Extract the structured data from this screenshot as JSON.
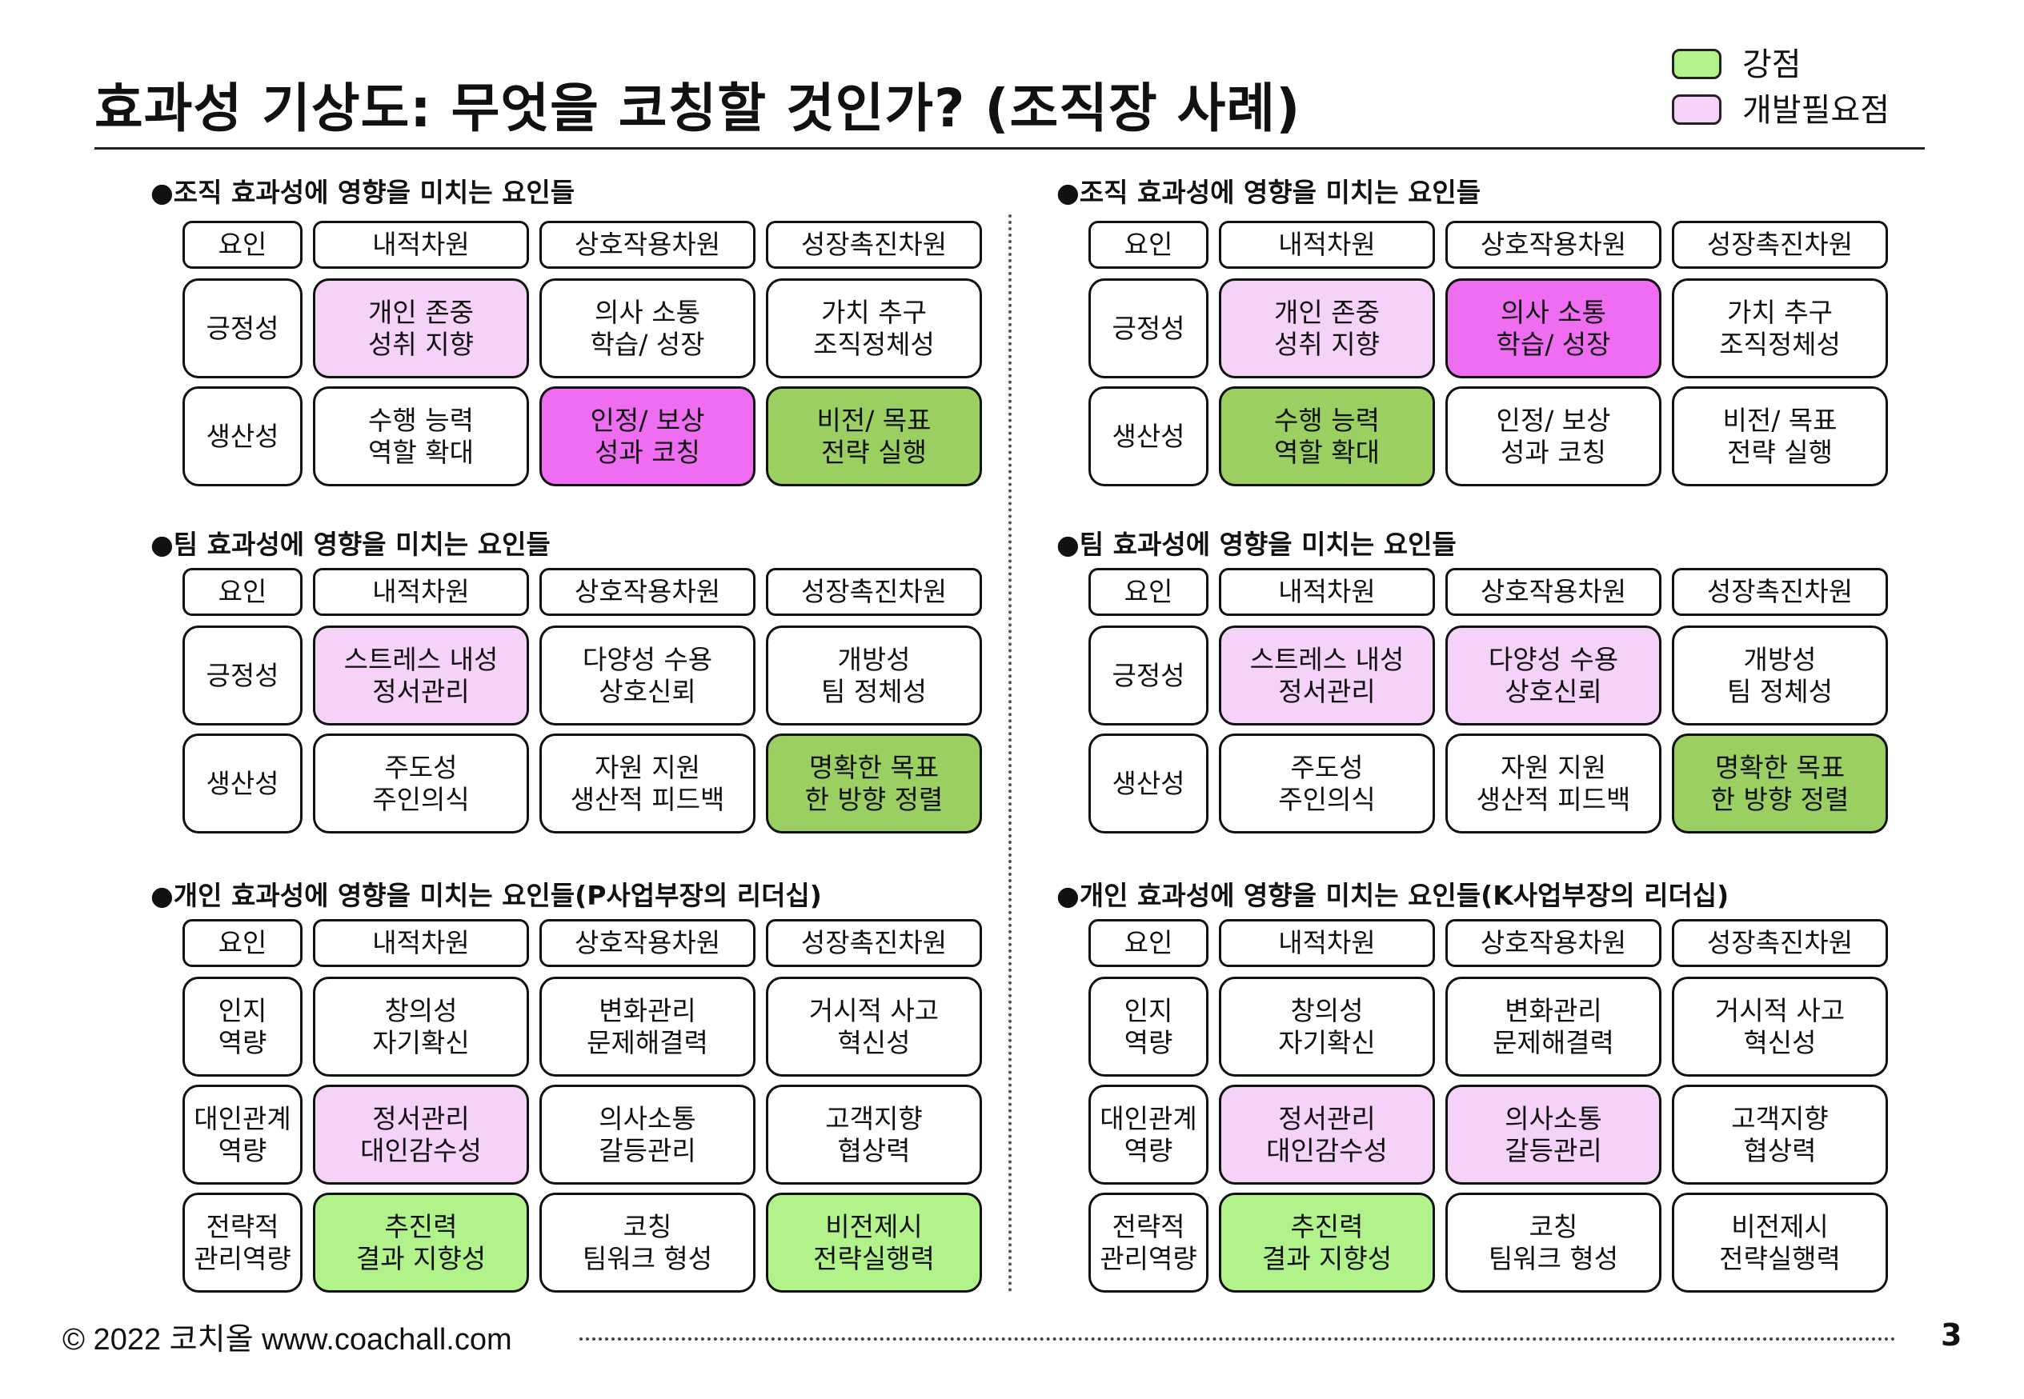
{
  "title": "효과성 기상도: 무엇을 코칭할 것인가? (조직장 사례)",
  "legend": [
    {
      "label": "강점",
      "color": "#b2f28a"
    },
    {
      "label": "개발필요점",
      "color": "#f5d2f8"
    }
  ],
  "colors": {
    "strength": "#b2f28a",
    "strength_dark": "#9ccf62",
    "develop": "#f5d2f8",
    "develop_strong": "#ee6df0",
    "none": "#ffffff"
  },
  "left_sections": [
    {
      "title": "●조직 효과성에 영향을 미치는 요인들",
      "header": [
        "요인",
        "내적차원",
        "상호작용차원",
        "성장촉진차원"
      ],
      "rows": [
        {
          "label": "긍정성",
          "cells": [
            {
              "text": "개인 존중\n성취 지향",
              "hl": "develop"
            },
            {
              "text": "의사 소통\n학습/ 성장",
              "hl": "none"
            },
            {
              "text": "가치 추구\n조직정체성",
              "hl": "none"
            }
          ]
        },
        {
          "label": "생산성",
          "cells": [
            {
              "text": "수행 능력\n역할 확대",
              "hl": "none"
            },
            {
              "text": "인정/ 보상\n성과 코칭",
              "hl": "develop_strong"
            },
            {
              "text": "비전/ 목표\n전략 실행",
              "hl": "strength_dark"
            }
          ]
        }
      ]
    },
    {
      "title": "●팀 효과성에 영향을 미치는 요인들",
      "header": [
        "요인",
        "내적차원",
        "상호작용차원",
        "성장촉진차원"
      ],
      "rows": [
        {
          "label": "긍정성",
          "cells": [
            {
              "text": "스트레스 내성\n정서관리",
              "hl": "develop"
            },
            {
              "text": "다양성 수용\n상호신뢰",
              "hl": "none"
            },
            {
              "text": "개방성\n팀 정체성",
              "hl": "none"
            }
          ]
        },
        {
          "label": "생산성",
          "cells": [
            {
              "text": "주도성\n주인의식",
              "hl": "none"
            },
            {
              "text": "자원 지원\n생산적 피드백",
              "hl": "none"
            },
            {
              "text": "명확한 목표\n한 방향 정렬",
              "hl": "strength_dark"
            }
          ]
        }
      ]
    },
    {
      "title": "●개인 효과성에 영향을 미치는 요인들(P사업부장의 리더십)",
      "header": [
        "요인",
        "내적차원",
        "상호작용차원",
        "성장촉진차원"
      ],
      "rows": [
        {
          "label": "인지\n역량",
          "cells": [
            {
              "text": "창의성\n자기확신",
              "hl": "none"
            },
            {
              "text": "변화관리\n문제해결력",
              "hl": "none"
            },
            {
              "text": "거시적 사고\n혁신성",
              "hl": "none"
            }
          ]
        },
        {
          "label": "대인관계\n역량",
          "cells": [
            {
              "text": "정서관리\n대인감수성",
              "hl": "develop"
            },
            {
              "text": "의사소통\n갈등관리",
              "hl": "none"
            },
            {
              "text": "고객지향\n협상력",
              "hl": "none"
            }
          ]
        },
        {
          "label": "전략적\n관리역량",
          "cells": [
            {
              "text": "추진력\n결과 지향성",
              "hl": "strength"
            },
            {
              "text": "코칭\n팀워크 형성",
              "hl": "none"
            },
            {
              "text": "비전제시\n전략실행력",
              "hl": "strength"
            }
          ]
        }
      ]
    }
  ],
  "right_sections": [
    {
      "title": "●조직 효과성에 영향을 미치는 요인들",
      "header": [
        "요인",
        "내적차원",
        "상호작용차원",
        "성장촉진차원"
      ],
      "rows": [
        {
          "label": "긍정성",
          "cells": [
            {
              "text": "개인 존중\n성취 지향",
              "hl": "develop"
            },
            {
              "text": "의사 소통\n학습/ 성장",
              "hl": "develop_strong"
            },
            {
              "text": "가치 추구\n조직정체성",
              "hl": "none"
            }
          ]
        },
        {
          "label": "생산성",
          "cells": [
            {
              "text": "수행 능력\n역할 확대",
              "hl": "strength_dark"
            },
            {
              "text": "인정/ 보상\n성과 코칭",
              "hl": "none"
            },
            {
              "text": "비전/ 목표\n전략 실행",
              "hl": "none"
            }
          ]
        }
      ]
    },
    {
      "title": "●팀 효과성에 영향을 미치는 요인들",
      "header": [
        "요인",
        "내적차원",
        "상호작용차원",
        "성장촉진차원"
      ],
      "rows": [
        {
          "label": "긍정성",
          "cells": [
            {
              "text": "스트레스 내성\n정서관리",
              "hl": "develop"
            },
            {
              "text": "다양성 수용\n상호신뢰",
              "hl": "develop"
            },
            {
              "text": "개방성\n팀 정체성",
              "hl": "none"
            }
          ]
        },
        {
          "label": "생산성",
          "cells": [
            {
              "text": "주도성\n주인의식",
              "hl": "none"
            },
            {
              "text": "자원 지원\n생산적 피드백",
              "hl": "none"
            },
            {
              "text": "명확한 목표\n한 방향 정렬",
              "hl": "strength_dark"
            }
          ]
        }
      ]
    },
    {
      "title": "●개인 효과성에 영향을 미치는 요인들(K사업부장의 리더십)",
      "header": [
        "요인",
        "내적차원",
        "상호작용차원",
        "성장촉진차원"
      ],
      "rows": [
        {
          "label": "인지\n역량",
          "cells": [
            {
              "text": "창의성\n자기확신",
              "hl": "none"
            },
            {
              "text": "변화관리\n문제해결력",
              "hl": "none"
            },
            {
              "text": "거시적 사고\n혁신성",
              "hl": "none"
            }
          ]
        },
        {
          "label": "대인관계\n역량",
          "cells": [
            {
              "text": "정서관리\n대인감수성",
              "hl": "develop"
            },
            {
              "text": "의사소통\n갈등관리",
              "hl": "develop"
            },
            {
              "text": "고객지향\n협상력",
              "hl": "none"
            }
          ]
        },
        {
          "label": "전략적\n관리역량",
          "cells": [
            {
              "text": "추진력\n결과 지향성",
              "hl": "strength"
            },
            {
              "text": "코칭\n팀워크 형성",
              "hl": "none"
            },
            {
              "text": "비전제시\n전략실행력",
              "hl": "none"
            }
          ]
        }
      ]
    }
  ],
  "footer": {
    "copyright": "© 2022 코치올 www.coachall.com",
    "page": "3"
  }
}
